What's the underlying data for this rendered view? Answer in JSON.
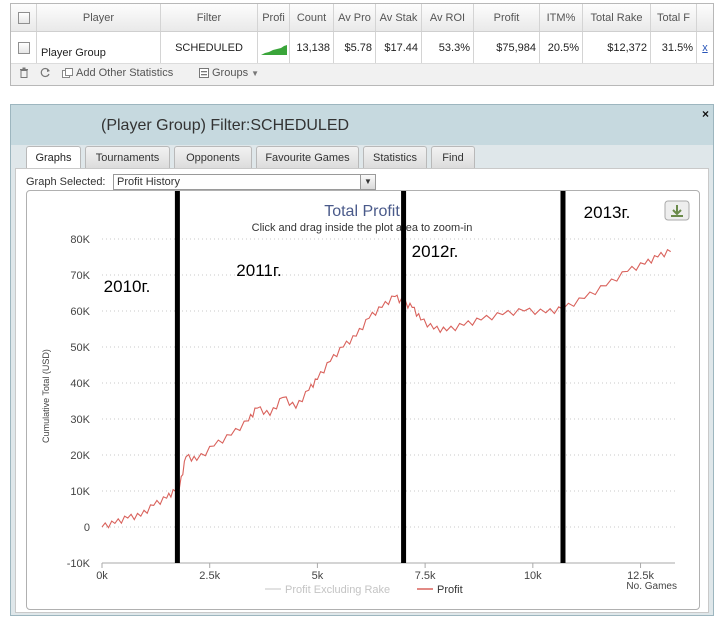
{
  "grid": {
    "headers": [
      "Player",
      "Filter",
      "Profi",
      "Count",
      "Av Pro",
      "Av Stak",
      "Av ROI",
      "Profit",
      "ITM%",
      "Total Rake",
      "Total F"
    ],
    "row": {
      "player": "Player Group",
      "filter": "SCHEDULED",
      "count": "13,138",
      "av_profit": "$5.78",
      "av_stake": "$17.44",
      "av_roi": "53.3%",
      "profit": "$75,984",
      "itm": "20.5%",
      "total_rake": "$12,372",
      "total_f": "31.5%",
      "remove": "x"
    },
    "toolbar": {
      "add_stats": "Add Other Statistics",
      "groups": "Groups"
    }
  },
  "panel": {
    "title": "(Player Group) Filter:SCHEDULED",
    "close": "×",
    "tabs": [
      "Graphs",
      "Tournaments",
      "Opponents",
      "Favourite Games",
      "Statistics",
      "Find"
    ],
    "active_tab": "Graphs",
    "graph_selected_label": "Graph Selected:",
    "graph_selected_value": "Profit History"
  },
  "colors": {
    "profit_line": "#d9625c",
    "sparkline": "#3aa53a",
    "panel_header": "#c6d9df"
  },
  "chart_data": {
    "type": "line",
    "title": "Total Profit",
    "subtitle": "Click and drag inside the plot area to zoom-in",
    "xlabel": "No. Games",
    "ylabel": "Cumulative Total (USD)",
    "x_ticks": [
      "0k",
      "2.5k",
      "5k",
      "7.5k",
      "10k",
      "12.5k"
    ],
    "y_ticks": [
      "80K",
      "70K",
      "60K",
      "50K",
      "40K",
      "30K",
      "20K",
      "10K",
      "0",
      "-10K"
    ],
    "xlim": [
      0,
      13300
    ],
    "ylim": [
      -10000,
      80000
    ],
    "legend": [
      "Profit Excluding Rake",
      "Profit"
    ],
    "series": [
      {
        "name": "Profit",
        "x": [
          0,
          300,
          600,
          900,
          1200,
          1500,
          1700,
          1800,
          1950,
          2200,
          2600,
          3000,
          3400,
          3600,
          3900,
          4200,
          4500,
          4800,
          5000,
          5300,
          5600,
          5900,
          6200,
          6500,
          6800,
          7000,
          7200,
          7400,
          7700,
          8000,
          8400,
          8800,
          9300,
          9800,
          10300,
          10700,
          11200,
          11700,
          12200,
          12600,
          12900,
          13200
        ],
        "y": [
          0,
          1000,
          2500,
          3000,
          6000,
          8000,
          10000,
          11000,
          19500,
          18500,
          22500,
          25500,
          29500,
          33000,
          31000,
          36000,
          33000,
          38000,
          41000,
          46000,
          50000,
          53000,
          58000,
          61000,
          64000,
          62000,
          61000,
          57500,
          55000,
          54500,
          56000,
          57500,
          59000,
          60000,
          59500,
          60500,
          63500,
          67000,
          71000,
          73000,
          75000,
          76500
        ]
      }
    ],
    "annotations": [
      "2010г.",
      "2011г.",
      "2012г.",
      "2013г."
    ],
    "dividers_x": [
      1750,
      7000,
      10700
    ]
  }
}
